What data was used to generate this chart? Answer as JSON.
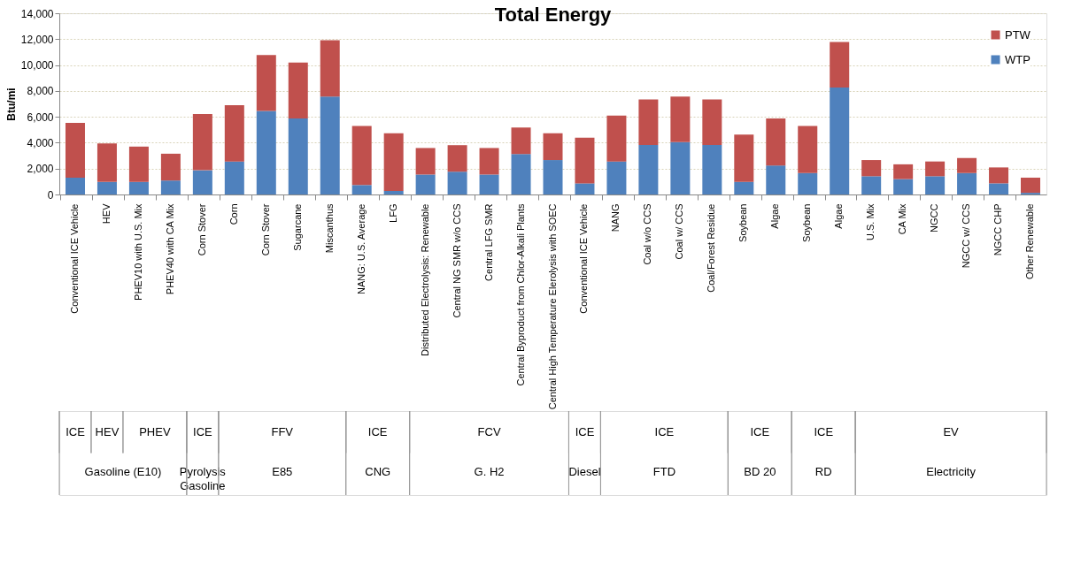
{
  "chart_data": {
    "type": "bar",
    "title": "Total Energy",
    "ylabel": "Btu/mi",
    "stacked": true,
    "categories": [
      "Conventional ICE Vehicle",
      "HEV",
      "PHEV10 with U.S. Mix",
      "PHEV40 with CA Mix",
      "Corn Stover",
      "Corn",
      "Corn Stover",
      "Sugarcane",
      "Miscanthus",
      "NANG: U.S. Average",
      "LFG",
      "Distributed Electrolysis: Renewable",
      "Central NG SMR w/o CCS",
      "Central LFG SMR",
      "Central Byproduct from Chlor-Alkali Plants",
      "Central High Temperature Elerolysis with SOEC",
      "Conventional ICE Vehicle",
      "NANG",
      "Coal w/o CCS",
      "Coal w/ CCS",
      "Coal/Forest Residue",
      "Soybean",
      "Algae",
      "Soybean",
      "Algae",
      "U.S. Mix",
      "CA Mix",
      "NGCC",
      "NGCC w/ CCS",
      "NGCC CHP",
      "Other Renewable"
    ],
    "series": [
      {
        "name": "WTP",
        "color": "#4f81bd",
        "values": [
          1300,
          970,
          970,
          1080,
          1870,
          2550,
          6450,
          5880,
          7570,
          730,
          280,
          1540,
          1760,
          1540,
          3130,
          2660,
          860,
          2550,
          3830,
          4050,
          3830,
          980,
          2240,
          1660,
          8260,
          1410,
          1190,
          1410,
          1650,
          860,
          130
        ]
      },
      {
        "name": "PTW",
        "color": "#c0504d",
        "values": [
          4230,
          2970,
          2730,
          2070,
          4340,
          4340,
          4320,
          4310,
          4340,
          4570,
          4450,
          2050,
          2050,
          2050,
          2040,
          2070,
          3520,
          3550,
          3520,
          3520,
          3520,
          3640,
          3630,
          3630,
          3520,
          1250,
          1140,
          1140,
          1170,
          1230,
          1170
        ]
      }
    ],
    "ylim": [
      0,
      14000
    ],
    "yticks": [
      {
        "value": 0,
        "label": "0"
      },
      {
        "value": 2000,
        "label": "2,000"
      },
      {
        "value": 4000,
        "label": "4,000"
      },
      {
        "value": 6000,
        "label": "6,000"
      },
      {
        "value": 8000,
        "label": "8,000"
      },
      {
        "value": 10000,
        "label": "10,000"
      },
      {
        "value": 12000,
        "label": "12,000"
      },
      {
        "value": 14000,
        "label": "14,000"
      }
    ],
    "grid": "y",
    "legend": "top right",
    "annotations": [
      "ICE",
      "HEV",
      "PHEV",
      "ICE",
      "FFV",
      "ICE",
      "FCV",
      "ICE",
      "ICE",
      "ICE",
      "ICE",
      "EV",
      "Gasoline (E10)",
      "Pyrolysis Gasoline",
      "E85",
      "CNG",
      "G. H2",
      "Diesel",
      "FTD",
      "BD 20",
      "RD",
      "Electricity"
    ]
  }
}
